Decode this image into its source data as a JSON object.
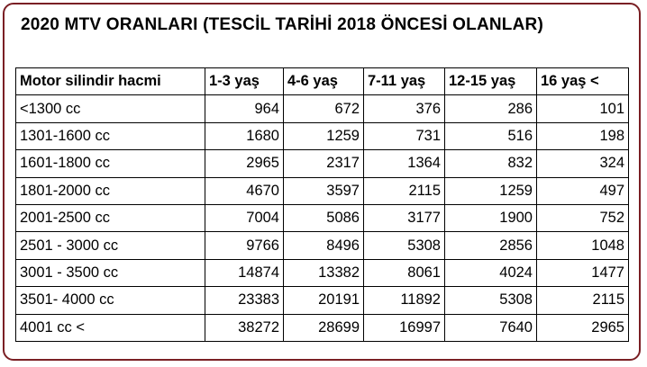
{
  "header": {
    "title": "2020 MTV ORANLARI (TESCİL TARİHİ 2018 ÖNCESİ OLANLAR)"
  },
  "table": {
    "columns": [
      "Motor silindir hacmi",
      "1-3 yaş",
      "4-6 yaş",
      "7-11 yaş",
      "12-15 yaş",
      "16 yaş <"
    ],
    "rows": [
      [
        "<1300 cc",
        964,
        672,
        376,
        286,
        101
      ],
      [
        "1301-1600 cc",
        1680,
        1259,
        731,
        516,
        198
      ],
      [
        "1601-1800 cc",
        2965,
        2317,
        1364,
        832,
        324
      ],
      [
        "1801-2000 cc",
        4670,
        3597,
        2115,
        1259,
        497
      ],
      [
        "2001-2500 cc",
        7004,
        5086,
        3177,
        1900,
        752
      ],
      [
        "2501 - 3000 cc",
        9766,
        8496,
        5308,
        2856,
        1048
      ],
      [
        "3001 - 3500 cc",
        14874,
        13382,
        8061,
        4024,
        1477
      ],
      [
        "3501- 4000 cc",
        23383,
        20191,
        11892,
        5308,
        2115
      ],
      [
        "4001 cc <",
        38272,
        28699,
        16997,
        7640,
        2965
      ]
    ]
  }
}
